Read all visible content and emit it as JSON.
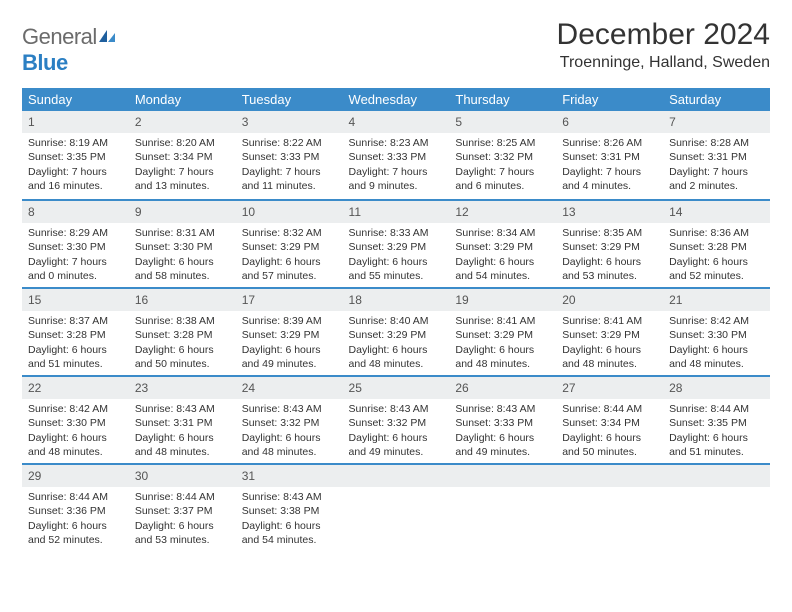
{
  "brand": {
    "part1": "General",
    "part2": "Blue"
  },
  "title": "December 2024",
  "location": "Troenninge, Halland, Sweden",
  "colors": {
    "header_bg": "#3b8bc9",
    "daynum_bg": "#eceeef",
    "text": "#333333"
  },
  "weekdays": [
    "Sunday",
    "Monday",
    "Tuesday",
    "Wednesday",
    "Thursday",
    "Friday",
    "Saturday"
  ],
  "weeks": [
    [
      {
        "n": "1",
        "sr": "8:19 AM",
        "ss": "3:35 PM",
        "dl": "7 hours and 16 minutes."
      },
      {
        "n": "2",
        "sr": "8:20 AM",
        "ss": "3:34 PM",
        "dl": "7 hours and 13 minutes."
      },
      {
        "n": "3",
        "sr": "8:22 AM",
        "ss": "3:33 PM",
        "dl": "7 hours and 11 minutes."
      },
      {
        "n": "4",
        "sr": "8:23 AM",
        "ss": "3:33 PM",
        "dl": "7 hours and 9 minutes."
      },
      {
        "n": "5",
        "sr": "8:25 AM",
        "ss": "3:32 PM",
        "dl": "7 hours and 6 minutes."
      },
      {
        "n": "6",
        "sr": "8:26 AM",
        "ss": "3:31 PM",
        "dl": "7 hours and 4 minutes."
      },
      {
        "n": "7",
        "sr": "8:28 AM",
        "ss": "3:31 PM",
        "dl": "7 hours and 2 minutes."
      }
    ],
    [
      {
        "n": "8",
        "sr": "8:29 AM",
        "ss": "3:30 PM",
        "dl": "7 hours and 0 minutes."
      },
      {
        "n": "9",
        "sr": "8:31 AM",
        "ss": "3:30 PM",
        "dl": "6 hours and 58 minutes."
      },
      {
        "n": "10",
        "sr": "8:32 AM",
        "ss": "3:29 PM",
        "dl": "6 hours and 57 minutes."
      },
      {
        "n": "11",
        "sr": "8:33 AM",
        "ss": "3:29 PM",
        "dl": "6 hours and 55 minutes."
      },
      {
        "n": "12",
        "sr": "8:34 AM",
        "ss": "3:29 PM",
        "dl": "6 hours and 54 minutes."
      },
      {
        "n": "13",
        "sr": "8:35 AM",
        "ss": "3:29 PM",
        "dl": "6 hours and 53 minutes."
      },
      {
        "n": "14",
        "sr": "8:36 AM",
        "ss": "3:28 PM",
        "dl": "6 hours and 52 minutes."
      }
    ],
    [
      {
        "n": "15",
        "sr": "8:37 AM",
        "ss": "3:28 PM",
        "dl": "6 hours and 51 minutes."
      },
      {
        "n": "16",
        "sr": "8:38 AM",
        "ss": "3:28 PM",
        "dl": "6 hours and 50 minutes."
      },
      {
        "n": "17",
        "sr": "8:39 AM",
        "ss": "3:29 PM",
        "dl": "6 hours and 49 minutes."
      },
      {
        "n": "18",
        "sr": "8:40 AM",
        "ss": "3:29 PM",
        "dl": "6 hours and 48 minutes."
      },
      {
        "n": "19",
        "sr": "8:41 AM",
        "ss": "3:29 PM",
        "dl": "6 hours and 48 minutes."
      },
      {
        "n": "20",
        "sr": "8:41 AM",
        "ss": "3:29 PM",
        "dl": "6 hours and 48 minutes."
      },
      {
        "n": "21",
        "sr": "8:42 AM",
        "ss": "3:30 PM",
        "dl": "6 hours and 48 minutes."
      }
    ],
    [
      {
        "n": "22",
        "sr": "8:42 AM",
        "ss": "3:30 PM",
        "dl": "6 hours and 48 minutes."
      },
      {
        "n": "23",
        "sr": "8:43 AM",
        "ss": "3:31 PM",
        "dl": "6 hours and 48 minutes."
      },
      {
        "n": "24",
        "sr": "8:43 AM",
        "ss": "3:32 PM",
        "dl": "6 hours and 48 minutes."
      },
      {
        "n": "25",
        "sr": "8:43 AM",
        "ss": "3:32 PM",
        "dl": "6 hours and 49 minutes."
      },
      {
        "n": "26",
        "sr": "8:43 AM",
        "ss": "3:33 PM",
        "dl": "6 hours and 49 minutes."
      },
      {
        "n": "27",
        "sr": "8:44 AM",
        "ss": "3:34 PM",
        "dl": "6 hours and 50 minutes."
      },
      {
        "n": "28",
        "sr": "8:44 AM",
        "ss": "3:35 PM",
        "dl": "6 hours and 51 minutes."
      }
    ],
    [
      {
        "n": "29",
        "sr": "8:44 AM",
        "ss": "3:36 PM",
        "dl": "6 hours and 52 minutes."
      },
      {
        "n": "30",
        "sr": "8:44 AM",
        "ss": "3:37 PM",
        "dl": "6 hours and 53 minutes."
      },
      {
        "n": "31",
        "sr": "8:43 AM",
        "ss": "3:38 PM",
        "dl": "6 hours and 54 minutes."
      },
      null,
      null,
      null,
      null
    ]
  ],
  "labels": {
    "sunrise": "Sunrise: ",
    "sunset": "Sunset: ",
    "daylight": "Daylight: "
  }
}
